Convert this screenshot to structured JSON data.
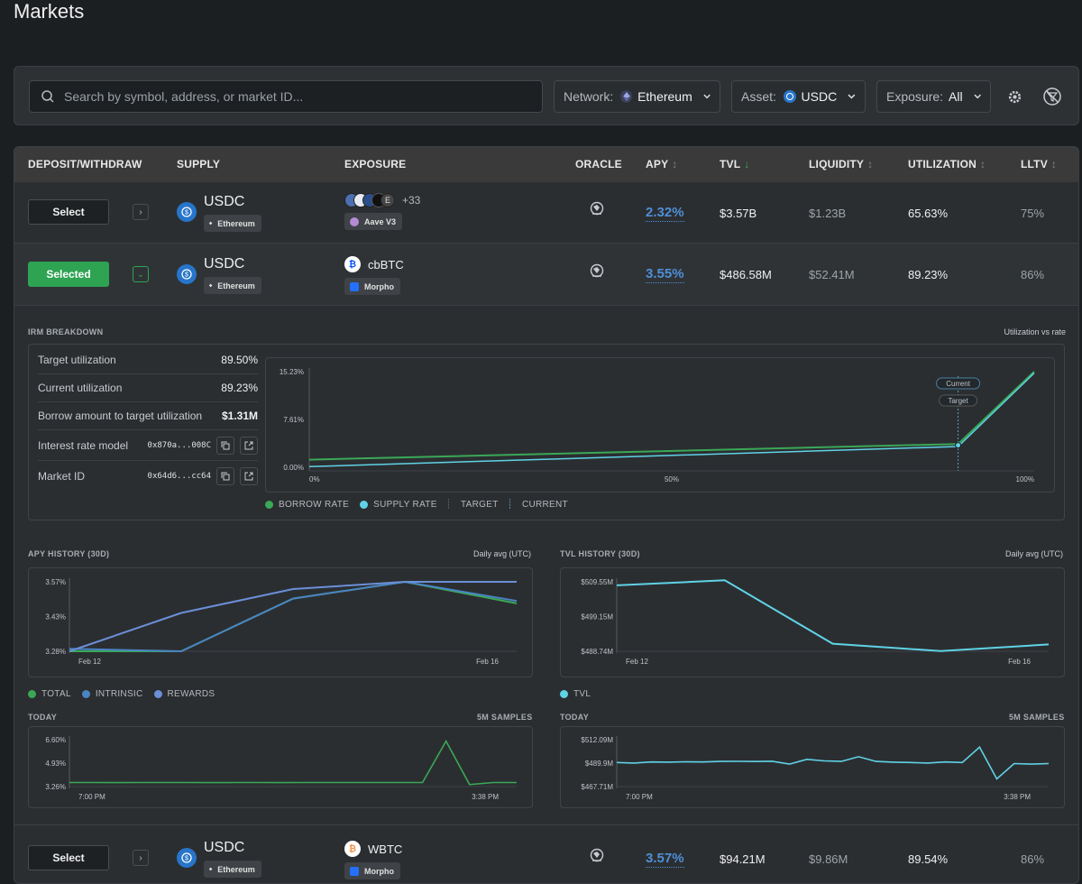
{
  "page": {
    "title": "Markets"
  },
  "filters": {
    "search_placeholder": "Search by symbol, address, or market ID...",
    "network": {
      "label": "Network:",
      "value": "Ethereum"
    },
    "asset": {
      "label": "Asset:",
      "value": "USDC"
    },
    "exposure": {
      "label": "Exposure:",
      "value": "All"
    }
  },
  "table": {
    "headers": {
      "deposit": "DEPOSIT/WITHDRAW",
      "supply": "SUPPLY",
      "exposure": "EXPOSURE",
      "oracle": "ORACLE",
      "apy": "APY",
      "tvl": "TVL",
      "liquidity": "LIQUIDITY",
      "utilization": "UTILIZATION",
      "lltv": "LLTV"
    },
    "rows": [
      {
        "button": "Select",
        "asset": "USDC",
        "network": "Ethereum",
        "exposure_more": "+33",
        "protocol": "Aave V3",
        "apy": "2.32%",
        "tvl": "$3.57B",
        "liquidity": "$1.23B",
        "utilization": "65.63%",
        "lltv": "75%",
        "exposure_icons": [
          "E"
        ]
      },
      {
        "button": "Selected",
        "asset": "USDC",
        "network": "Ethereum",
        "collateral": "cbBTC",
        "protocol": "Morpho",
        "apy": "3.55%",
        "tvl": "$486.58M",
        "liquidity": "$52.41M",
        "utilization": "89.23%",
        "lltv": "86%"
      },
      {
        "button": "Select",
        "asset": "USDC",
        "network": "Ethereum",
        "collateral": "WBTC",
        "protocol": "Morpho",
        "apy": "3.57%",
        "tvl": "$94.21M",
        "liquidity": "$9.86M",
        "utilization": "89.54%",
        "lltv": "86%"
      }
    ]
  },
  "irm": {
    "title": "IRM BREAKDOWN",
    "right_label": "Utilization vs rate",
    "rows": [
      {
        "label": "Target utilization",
        "value": "89.50%"
      },
      {
        "label": "Current utilization",
        "value": "89.23%"
      },
      {
        "label": "Borrow amount to target utilization",
        "value": "$1.31M"
      },
      {
        "label": "Interest rate model",
        "value": "0x870a...008C"
      },
      {
        "label": "Market ID",
        "value": "0x64d6...cc64"
      }
    ],
    "chart_data": {
      "type": "line",
      "title": "Utilization vs rate",
      "x_ticks": [
        "0%",
        "50%",
        "100%"
      ],
      "y_ticks": [
        "15.23%",
        "7.61%",
        "0.00%"
      ],
      "ylim": [
        0,
        15.23
      ],
      "series": [
        {
          "name": "BORROW RATE",
          "x": [
            0,
            89.5,
            100
          ],
          "values": [
            1.2,
            3.7,
            15.23
          ]
        },
        {
          "name": "SUPPLY RATE",
          "x": [
            0,
            89.5,
            100
          ],
          "values": [
            0.1,
            3.3,
            15.0
          ]
        }
      ],
      "markers": {
        "current_label": "Current",
        "target_label": "Target",
        "current_x": 89.23,
        "target_x": 89.5
      },
      "legend": [
        "BORROW RATE",
        "SUPPLY RATE",
        "TARGET",
        "CURRENT"
      ]
    }
  },
  "apy_history": {
    "title": "APY HISTORY (30D)",
    "right_label": "Daily avg (UTC)",
    "chart_data": {
      "type": "line",
      "x_ticks": [
        "Feb 12",
        "Feb 16"
      ],
      "y_ticks": [
        "3.57%",
        "3.43%",
        "3.28%"
      ],
      "ylim": [
        3.28,
        3.57
      ],
      "series": [
        {
          "name": "TOTAL",
          "values": [
            3.28,
            3.28,
            3.5,
            3.57,
            3.48
          ]
        },
        {
          "name": "INTRINSIC",
          "values": [
            3.29,
            3.28,
            3.5,
            3.57,
            3.49
          ]
        },
        {
          "name": "REWARDS",
          "values": [
            3.28,
            3.44,
            3.54,
            3.57,
            3.57
          ]
        }
      ],
      "legend": [
        "TOTAL",
        "INTRINSIC",
        "REWARDS"
      ]
    },
    "today_label": "TODAY",
    "samples_label": "5M SAMPLES",
    "today_chart": {
      "type": "line",
      "x_ticks": [
        "7:00 PM",
        "3:38 PM"
      ],
      "y_ticks": [
        "6.60%",
        "4.93%",
        "3.26%"
      ],
      "ylim": [
        3.26,
        6.6
      ],
      "series": [
        {
          "name": "TOTAL",
          "values": [
            3.55,
            3.55,
            3.54,
            3.55,
            3.55,
            3.55,
            3.54,
            3.55,
            3.55,
            3.54,
            3.55,
            3.55,
            3.55,
            3.55,
            3.55,
            3.55,
            6.5,
            3.4,
            3.55,
            3.55
          ]
        }
      ]
    }
  },
  "tvl_history": {
    "title": "TVL HISTORY (30D)",
    "right_label": "Daily avg (UTC)",
    "chart_data": {
      "type": "line",
      "x_ticks": [
        "Feb 12",
        "Feb 16"
      ],
      "y_ticks": [
        "$509.55M",
        "$499.15M",
        "$488.74M"
      ],
      "ylim": [
        488.74,
        509.55
      ],
      "series": [
        {
          "name": "TVL",
          "values": [
            508.5,
            510.0,
            491.0,
            488.8,
            490.8
          ]
        }
      ],
      "legend": [
        "TVL"
      ]
    },
    "today_label": "TODAY",
    "samples_label": "5M SAMPLES",
    "today_chart": {
      "type": "line",
      "x_ticks": [
        "7:00 PM",
        "3:38 PM"
      ],
      "y_ticks": [
        "$512.09M",
        "$489.9M",
        "$467.71M"
      ],
      "ylim": [
        467.71,
        512.09
      ],
      "series": [
        {
          "name": "TVL",
          "values": [
            490.5,
            490.0,
            491.0,
            490.8,
            491.2,
            491.0,
            491.5,
            491.6,
            491.4,
            491.7,
            489.0,
            493.5,
            492.0,
            491.5,
            496.0,
            491.5,
            490.8,
            490.5,
            490.0,
            491.0,
            490.5,
            505.0,
            475.0,
            489.5,
            489.0,
            489.5
          ]
        }
      ]
    }
  },
  "colors": {
    "green": "#3aa857",
    "cyan": "#5fd3e6",
    "blue": "#4a84c4",
    "lightblue": "#6b8fd8",
    "apy_blue": "#4f8fd6"
  }
}
